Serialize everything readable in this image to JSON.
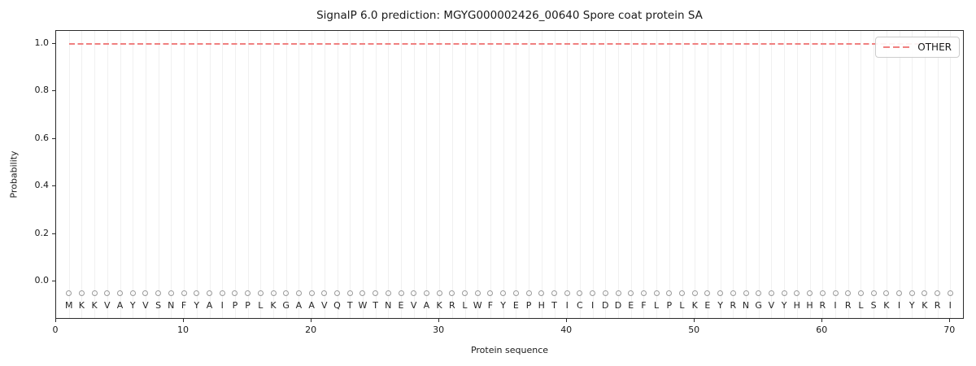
{
  "chart_data": {
    "type": "line",
    "title": "SignalP 6.0 prediction: MGYG000002426_00640 Spore coat protein SA",
    "xlabel": "Protein sequence",
    "ylabel": "Probability",
    "xlim": [
      0,
      71
    ],
    "ylim": [
      -0.153,
      1.054
    ],
    "xticks": [
      "0",
      "10",
      "20",
      "30",
      "40",
      "50",
      "60",
      "70"
    ],
    "xtick_values": [
      0,
      10,
      20,
      30,
      40,
      50,
      60,
      70
    ],
    "yticks": [
      "0.0",
      "0.2",
      "0.4",
      "0.6",
      "0.8",
      "1.0"
    ],
    "ytick_values": [
      0.0,
      0.2,
      0.4,
      0.6,
      0.8,
      1.0
    ],
    "grid": {
      "vertical_line_per_residue": true,
      "color": "#f0f0f0"
    },
    "series": [
      {
        "name": "OTHER",
        "linestyle": "dashed",
        "color": "#f08080",
        "x_start": 1,
        "x_end": 70,
        "y_constant": 1.0
      }
    ],
    "sequence_markers": {
      "marker": "o",
      "y": -0.05,
      "edge_color": "#9a9a9a",
      "letters_y": -0.1
    },
    "sequence": [
      "M",
      "K",
      "K",
      "V",
      "A",
      "Y",
      "V",
      "S",
      "N",
      "F",
      "Y",
      "A",
      "I",
      "P",
      "P",
      "L",
      "K",
      "G",
      "A",
      "A",
      "V",
      "Q",
      "T",
      "W",
      "T",
      "N",
      "E",
      "V",
      "A",
      "K",
      "R",
      "L",
      "W",
      "F",
      "Y",
      "E",
      "P",
      "H",
      "T",
      "I",
      "C",
      "I",
      "D",
      "D",
      "E",
      "F",
      "L",
      "P",
      "L",
      "K",
      "E",
      "Y",
      "R",
      "N",
      "G",
      "V",
      "Y",
      "H",
      "H",
      "R",
      "I",
      "R",
      "L",
      "S",
      "K",
      "I",
      "Y",
      "K",
      "R",
      "I"
    ],
    "legend": {
      "position": "upper right",
      "entries": [
        "OTHER"
      ]
    }
  }
}
